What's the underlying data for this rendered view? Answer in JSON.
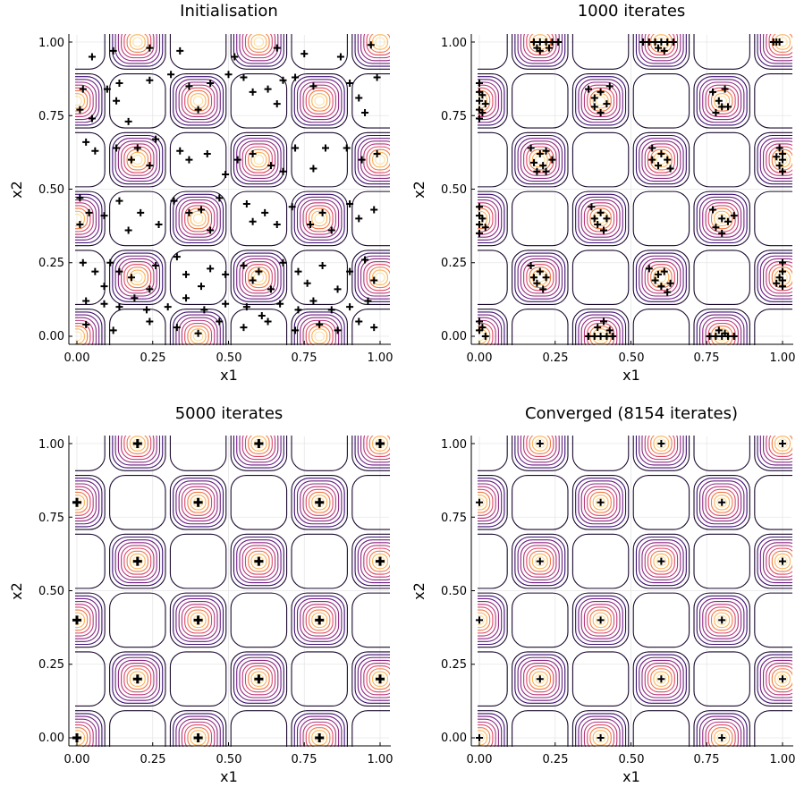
{
  "colors": {
    "contour_scale": [
      "#1a0a2e",
      "#3b0f70",
      "#6b1d81",
      "#8c2981",
      "#b5367a",
      "#de4968",
      "#f07a4a",
      "#fbb35c",
      "#fde0a0"
    ],
    "marker": "#000000",
    "grid": "#e6e6e6",
    "axis": "#000000"
  },
  "chart_data": [
    {
      "type": "contour-scatter",
      "title": "Initialisation",
      "xlabel": "x1",
      "ylabel": "x2",
      "xlim": [
        0,
        1
      ],
      "ylim": [
        0,
        1
      ],
      "xticks": [
        "0.00",
        "0.25",
        "0.50",
        "0.75",
        "1.00"
      ],
      "yticks": [
        "0.00",
        "0.25",
        "0.50",
        "0.75",
        "1.00"
      ],
      "grid": true,
      "legend": "none",
      "contour": {
        "peaks_x": [
          0,
          0.2,
          0.4,
          0.6,
          0.8,
          1.0
        ],
        "peaks_y": [
          0,
          0.2,
          0.4,
          0.6,
          0.8,
          1.0
        ],
        "pattern": "checkerboard"
      },
      "points": [
        [
          0.05,
          0.95
        ],
        [
          0.12,
          0.97
        ],
        [
          0.24,
          0.98
        ],
        [
          0.34,
          0.97
        ],
        [
          0.52,
          0.95
        ],
        [
          0.66,
          0.98
        ],
        [
          0.75,
          0.96
        ],
        [
          0.87,
          0.95
        ],
        [
          0.97,
          0.99
        ],
        [
          0.02,
          0.84
        ],
        [
          0.01,
          0.77
        ],
        [
          0.05,
          0.74
        ],
        [
          0.1,
          0.84
        ],
        [
          0.14,
          0.86
        ],
        [
          0.13,
          0.8
        ],
        [
          0.17,
          0.73
        ],
        [
          0.24,
          0.87
        ],
        [
          0.31,
          0.89
        ],
        [
          0.37,
          0.85
        ],
        [
          0.4,
          0.77
        ],
        [
          0.44,
          0.86
        ],
        [
          0.5,
          0.89
        ],
        [
          0.55,
          0.88
        ],
        [
          0.58,
          0.83
        ],
        [
          0.63,
          0.84
        ],
        [
          0.66,
          0.79
        ],
        [
          0.68,
          0.87
        ],
        [
          0.72,
          0.88
        ],
        [
          0.78,
          0.85
        ],
        [
          0.9,
          0.86
        ],
        [
          0.93,
          0.81
        ],
        [
          0.95,
          0.76
        ],
        [
          0.99,
          0.88
        ],
        [
          0.03,
          0.66
        ],
        [
          0.06,
          0.63
        ],
        [
          0.13,
          0.64
        ],
        [
          0.18,
          0.6
        ],
        [
          0.2,
          0.64
        ],
        [
          0.24,
          0.58
        ],
        [
          0.26,
          0.67
        ],
        [
          0.34,
          0.63
        ],
        [
          0.37,
          0.6
        ],
        [
          0.43,
          0.62
        ],
        [
          0.49,
          0.55
        ],
        [
          0.53,
          0.6
        ],
        [
          0.58,
          0.62
        ],
        [
          0.64,
          0.58
        ],
        [
          0.68,
          0.56
        ],
        [
          0.72,
          0.64
        ],
        [
          0.78,
          0.57
        ],
        [
          0.82,
          0.64
        ],
        [
          0.89,
          0.64
        ],
        [
          0.94,
          0.6
        ],
        [
          0.99,
          0.62
        ],
        [
          0.01,
          0.47
        ],
        [
          0.04,
          0.42
        ],
        [
          0.01,
          0.38
        ],
        [
          0.09,
          0.41
        ],
        [
          0.14,
          0.46
        ],
        [
          0.17,
          0.36
        ],
        [
          0.21,
          0.42
        ],
        [
          0.27,
          0.38
        ],
        [
          0.32,
          0.46
        ],
        [
          0.37,
          0.42
        ],
        [
          0.41,
          0.43
        ],
        [
          0.44,
          0.36
        ],
        [
          0.47,
          0.47
        ],
        [
          0.56,
          0.45
        ],
        [
          0.58,
          0.39
        ],
        [
          0.62,
          0.42
        ],
        [
          0.66,
          0.38
        ],
        [
          0.71,
          0.44
        ],
        [
          0.77,
          0.38
        ],
        [
          0.81,
          0.42
        ],
        [
          0.84,
          0.36
        ],
        [
          0.9,
          0.45
        ],
        [
          0.93,
          0.4
        ],
        [
          0.98,
          0.43
        ],
        [
          0.02,
          0.25
        ],
        [
          0.06,
          0.22
        ],
        [
          0.09,
          0.17
        ],
        [
          0.11,
          0.25
        ],
        [
          0.14,
          0.22
        ],
        [
          0.18,
          0.2
        ],
        [
          0.24,
          0.16
        ],
        [
          0.26,
          0.24
        ],
        [
          0.33,
          0.27
        ],
        [
          0.36,
          0.21
        ],
        [
          0.41,
          0.17
        ],
        [
          0.44,
          0.23
        ],
        [
          0.49,
          0.21
        ],
        [
          0.55,
          0.24
        ],
        [
          0.58,
          0.19
        ],
        [
          0.6,
          0.22
        ],
        [
          0.64,
          0.16
        ],
        [
          0.68,
          0.25
        ],
        [
          0.73,
          0.22
        ],
        [
          0.76,
          0.18
        ],
        [
          0.81,
          0.24
        ],
        [
          0.86,
          0.16
        ],
        [
          0.9,
          0.22
        ],
        [
          0.95,
          0.26
        ],
        [
          0.98,
          0.19
        ],
        [
          0.03,
          0.12
        ],
        [
          0.09,
          0.11
        ],
        [
          0.14,
          0.1
        ],
        [
          0.19,
          0.13
        ],
        [
          0.23,
          0.09
        ],
        [
          0.3,
          0.1
        ],
        [
          0.36,
          0.13
        ],
        [
          0.42,
          0.09
        ],
        [
          0.49,
          0.11
        ],
        [
          0.56,
          0.1
        ],
        [
          0.61,
          0.07
        ],
        [
          0.67,
          0.11
        ],
        [
          0.73,
          0.09
        ],
        [
          0.78,
          0.12
        ],
        [
          0.84,
          0.09
        ],
        [
          0.9,
          0.1
        ],
        [
          0.96,
          0.12
        ],
        [
          0.03,
          0.04
        ],
        [
          0.12,
          0.02
        ],
        [
          0.24,
          0.05
        ],
        [
          0.33,
          0.03
        ],
        [
          0.4,
          0.01
        ],
        [
          0.47,
          0.05
        ],
        [
          0.55,
          0.03
        ],
        [
          0.63,
          0.05
        ],
        [
          0.72,
          0.02
        ],
        [
          0.8,
          0.04
        ],
        [
          0.86,
          0.02
        ],
        [
          0.93,
          0.05
        ],
        [
          0.98,
          0.03
        ]
      ]
    },
    {
      "type": "contour-scatter",
      "title": "1000 iterates",
      "xlabel": "x1",
      "ylabel": "x2",
      "xlim": [
        0,
        1
      ],
      "ylim": [
        0,
        1
      ],
      "xticks": [
        "0.00",
        "0.25",
        "0.50",
        "0.75",
        "1.00"
      ],
      "yticks": [
        "0.00",
        "0.25",
        "0.50",
        "0.75",
        "1.00"
      ],
      "grid": true,
      "legend": "none",
      "contour": {
        "peaks_x": [
          0,
          0.2,
          0.4,
          0.6,
          0.8,
          1.0
        ],
        "peaks_y": [
          0,
          0.2,
          0.4,
          0.6,
          0.8,
          1.0
        ],
        "pattern": "checkerboard"
      },
      "points": [
        [
          0.18,
          1.0
        ],
        [
          0.2,
          1.0
        ],
        [
          0.22,
          1.0
        ],
        [
          0.24,
          1.0
        ],
        [
          0.26,
          1.0
        ],
        [
          0.19,
          0.98
        ],
        [
          0.2,
          0.97
        ],
        [
          0.23,
          0.98
        ],
        [
          0.54,
          1.0
        ],
        [
          0.56,
          1.0
        ],
        [
          0.58,
          1.0
        ],
        [
          0.6,
          1.0
        ],
        [
          0.62,
          1.0
        ],
        [
          0.64,
          1.0
        ],
        [
          0.59,
          0.98
        ],
        [
          0.61,
          0.97
        ],
        [
          0.97,
          1.0
        ],
        [
          0.98,
          1.0
        ],
        [
          0.99,
          1.0
        ],
        [
          0.0,
          0.86
        ],
        [
          0.0,
          0.83
        ],
        [
          0.0,
          0.8
        ],
        [
          0.0,
          0.77
        ],
        [
          0.0,
          0.74
        ],
        [
          0.01,
          0.82
        ],
        [
          0.02,
          0.79
        ],
        [
          0.01,
          0.76
        ],
        [
          0.36,
          0.84
        ],
        [
          0.38,
          0.81
        ],
        [
          0.4,
          0.83
        ],
        [
          0.42,
          0.79
        ],
        [
          0.4,
          0.76
        ],
        [
          0.43,
          0.85
        ],
        [
          0.38,
          0.78
        ],
        [
          0.77,
          0.83
        ],
        [
          0.79,
          0.8
        ],
        [
          0.81,
          0.84
        ],
        [
          0.82,
          0.78
        ],
        [
          0.78,
          0.76
        ],
        [
          0.8,
          0.78
        ],
        [
          0.17,
          0.64
        ],
        [
          0.2,
          0.62
        ],
        [
          0.22,
          0.63
        ],
        [
          0.18,
          0.59
        ],
        [
          0.21,
          0.58
        ],
        [
          0.24,
          0.6
        ],
        [
          0.19,
          0.56
        ],
        [
          0.22,
          0.56
        ],
        [
          0.57,
          0.64
        ],
        [
          0.6,
          0.62
        ],
        [
          0.62,
          0.6
        ],
        [
          0.59,
          0.58
        ],
        [
          0.63,
          0.57
        ],
        [
          0.57,
          0.6
        ],
        [
          0.99,
          0.64
        ],
        [
          1.0,
          0.62
        ],
        [
          1.0,
          0.6
        ],
        [
          0.99,
          0.58
        ],
        [
          1.0,
          0.56
        ],
        [
          0.98,
          0.61
        ],
        [
          0.0,
          0.44
        ],
        [
          0.0,
          0.41
        ],
        [
          0.0,
          0.38
        ],
        [
          0.0,
          0.35
        ],
        [
          0.01,
          0.4
        ],
        [
          0.02,
          0.37
        ],
        [
          0.37,
          0.44
        ],
        [
          0.4,
          0.42
        ],
        [
          0.42,
          0.4
        ],
        [
          0.39,
          0.38
        ],
        [
          0.41,
          0.36
        ],
        [
          0.38,
          0.4
        ],
        [
          0.77,
          0.43
        ],
        [
          0.8,
          0.4
        ],
        [
          0.82,
          0.39
        ],
        [
          0.78,
          0.37
        ],
        [
          0.8,
          0.35
        ],
        [
          0.84,
          0.41
        ],
        [
          0.17,
          0.24
        ],
        [
          0.2,
          0.22
        ],
        [
          0.22,
          0.2
        ],
        [
          0.19,
          0.18
        ],
        [
          0.21,
          0.16
        ],
        [
          0.18,
          0.2
        ],
        [
          0.56,
          0.23
        ],
        [
          0.59,
          0.21
        ],
        [
          0.61,
          0.22
        ],
        [
          0.63,
          0.18
        ],
        [
          0.6,
          0.17
        ],
        [
          0.62,
          0.15
        ],
        [
          0.58,
          0.19
        ],
        [
          1.0,
          0.25
        ],
        [
          1.0,
          0.22
        ],
        [
          1.0,
          0.19
        ],
        [
          1.0,
          0.17
        ],
        [
          0.99,
          0.2
        ],
        [
          0.98,
          0.18
        ],
        [
          0.0,
          0.05
        ],
        [
          0.0,
          0.02
        ],
        [
          0.01,
          0.03
        ],
        [
          0.02,
          0.0
        ],
        [
          0.36,
          0.0
        ],
        [
          0.38,
          0.0
        ],
        [
          0.4,
          0.0
        ],
        [
          0.42,
          0.0
        ],
        [
          0.44,
          0.0
        ],
        [
          0.39,
          0.03
        ],
        [
          0.41,
          0.05
        ],
        [
          0.43,
          0.02
        ],
        [
          0.76,
          0.0
        ],
        [
          0.78,
          0.0
        ],
        [
          0.8,
          0.0
        ],
        [
          0.82,
          0.0
        ],
        [
          0.84,
          0.0
        ],
        [
          0.79,
          0.02
        ],
        [
          0.81,
          0.01
        ]
      ]
    },
    {
      "type": "contour-scatter",
      "title": "5000 iterates",
      "xlabel": "x1",
      "ylabel": "x2",
      "xlim": [
        0,
        1
      ],
      "ylim": [
        0,
        1
      ],
      "xticks": [
        "0.00",
        "0.25",
        "0.50",
        "0.75",
        "1.00"
      ],
      "yticks": [
        "0.00",
        "0.25",
        "0.50",
        "0.75",
        "1.00"
      ],
      "grid": true,
      "legend": "none",
      "contour": {
        "peaks_x": [
          0,
          0.2,
          0.4,
          0.6,
          0.8,
          1.0
        ],
        "peaks_y": [
          0,
          0.2,
          0.4,
          0.6,
          0.8,
          1.0
        ],
        "pattern": "checkerboard"
      },
      "points": [
        [
          0.2,
          1.0
        ],
        [
          0.6,
          1.0
        ],
        [
          1.0,
          1.0
        ],
        [
          0.0,
          0.8
        ],
        [
          0.4,
          0.8
        ],
        [
          0.8,
          0.8
        ],
        [
          0.2,
          0.6
        ],
        [
          0.6,
          0.6
        ],
        [
          1.0,
          0.6
        ],
        [
          0.0,
          0.4
        ],
        [
          0.4,
          0.4
        ],
        [
          0.8,
          0.4
        ],
        [
          0.2,
          0.2
        ],
        [
          0.6,
          0.2
        ],
        [
          1.0,
          0.2
        ],
        [
          0.0,
          0.0
        ],
        [
          0.4,
          0.0
        ],
        [
          0.8,
          0.0
        ]
      ]
    },
    {
      "type": "contour-scatter",
      "title": "Converged (8154 iterates)",
      "xlabel": "x1",
      "ylabel": "x2",
      "xlim": [
        0,
        1
      ],
      "ylim": [
        0,
        1
      ],
      "xticks": [
        "0.00",
        "0.25",
        "0.50",
        "0.75",
        "1.00"
      ],
      "yticks": [
        "0.00",
        "0.25",
        "0.50",
        "0.75",
        "1.00"
      ],
      "grid": true,
      "legend": "none",
      "contour": {
        "peaks_x": [
          0,
          0.2,
          0.4,
          0.6,
          0.8,
          1.0
        ],
        "peaks_y": [
          0,
          0.2,
          0.4,
          0.6,
          0.8,
          1.0
        ],
        "pattern": "checkerboard"
      },
      "points": [
        [
          0.2,
          1.0
        ],
        [
          0.6,
          1.0
        ],
        [
          1.0,
          1.0
        ],
        [
          0.0,
          0.8
        ],
        [
          0.4,
          0.8
        ],
        [
          0.8,
          0.8
        ],
        [
          0.2,
          0.6
        ],
        [
          0.6,
          0.6
        ],
        [
          1.0,
          0.6
        ],
        [
          0.0,
          0.4
        ],
        [
          0.4,
          0.4
        ],
        [
          0.8,
          0.4
        ],
        [
          0.2,
          0.2
        ],
        [
          0.6,
          0.2
        ],
        [
          1.0,
          0.2
        ],
        [
          0.0,
          0.0
        ],
        [
          0.4,
          0.0
        ],
        [
          0.8,
          0.0
        ]
      ]
    }
  ]
}
